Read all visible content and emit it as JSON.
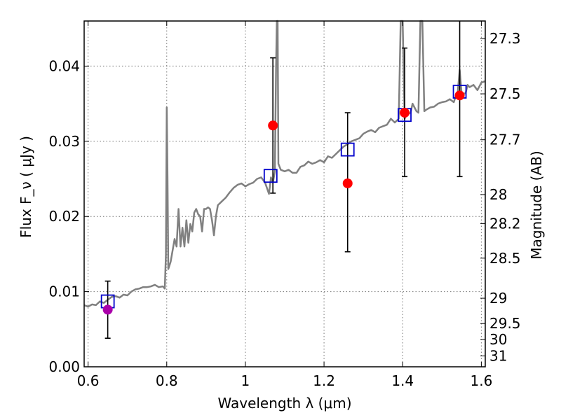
{
  "chart_data": {
    "type": "scatter",
    "xlabel": "Wavelength  λ (μm)",
    "ylabel": "Flux  F_ν  ( μJy )",
    "ylabel_right": "Magnitude (AB)",
    "xlim": [
      0.59,
      1.61
    ],
    "ylim": [
      0.0,
      0.046
    ],
    "grid": true,
    "x_ticks": [
      0.6,
      0.8,
      1.0,
      1.2,
      1.4,
      1.6
    ],
    "x_tick_labels": [
      "0.6",
      "0.8",
      "1",
      "1.2",
      "1.4",
      "1.6"
    ],
    "y_ticks": [
      0.0,
      0.01,
      0.02,
      0.03,
      0.04
    ],
    "y_tick_labels": [
      "0.00",
      "0.01",
      "0.02",
      "0.03",
      "0.04"
    ],
    "mag_ticks": [
      27.3,
      27.5,
      27.7,
      28,
      28.2,
      28.5,
      29,
      29.5,
      30,
      31
    ],
    "mag_tick_labels": [
      "27.3",
      "27.5",
      "27.7",
      "28",
      "28.2",
      "28.5",
      "29",
      "29.5",
      "30",
      "31"
    ],
    "colors": {
      "spectrum": "#808080",
      "model_boxes": "#0000cc",
      "observed": "#ff0000",
      "observed_first": "#aa00aa",
      "errorbars": "#000000",
      "grid": "#777777"
    },
    "spectrum": [
      [
        0.59,
        0.0082
      ],
      [
        0.6,
        0.008
      ],
      [
        0.61,
        0.0083
      ],
      [
        0.62,
        0.0082
      ],
      [
        0.63,
        0.0087
      ],
      [
        0.64,
        0.0085
      ],
      [
        0.65,
        0.0089
      ],
      [
        0.66,
        0.0093
      ],
      [
        0.67,
        0.0094
      ],
      [
        0.68,
        0.0092
      ],
      [
        0.69,
        0.0096
      ],
      [
        0.7,
        0.0095
      ],
      [
        0.71,
        0.01
      ],
      [
        0.72,
        0.0103
      ],
      [
        0.73,
        0.0104
      ],
      [
        0.74,
        0.0106
      ],
      [
        0.75,
        0.0106
      ],
      [
        0.76,
        0.0107
      ],
      [
        0.77,
        0.0109
      ],
      [
        0.78,
        0.0106
      ],
      [
        0.79,
        0.0107
      ],
      [
        0.795,
        0.0104
      ],
      [
        0.798,
        0.015
      ],
      [
        0.8,
        0.0345
      ],
      [
        0.802,
        0.025
      ],
      [
        0.804,
        0.013
      ],
      [
        0.81,
        0.014
      ],
      [
        0.815,
        0.0155
      ],
      [
        0.82,
        0.017
      ],
      [
        0.825,
        0.016
      ],
      [
        0.83,
        0.021
      ],
      [
        0.835,
        0.016
      ],
      [
        0.84,
        0.0185
      ],
      [
        0.845,
        0.016
      ],
      [
        0.85,
        0.0195
      ],
      [
        0.855,
        0.0165
      ],
      [
        0.86,
        0.019
      ],
      [
        0.865,
        0.018
      ],
      [
        0.87,
        0.0205
      ],
      [
        0.875,
        0.021
      ],
      [
        0.88,
        0.0203
      ],
      [
        0.885,
        0.02
      ],
      [
        0.89,
        0.018
      ],
      [
        0.895,
        0.021
      ],
      [
        0.9,
        0.021
      ],
      [
        0.905,
        0.0212
      ],
      [
        0.91,
        0.021
      ],
      [
        0.915,
        0.0195
      ],
      [
        0.92,
        0.0175
      ],
      [
        0.925,
        0.02
      ],
      [
        0.93,
        0.0215
      ],
      [
        0.94,
        0.022
      ],
      [
        0.95,
        0.0225
      ],
      [
        0.96,
        0.0232
      ],
      [
        0.97,
        0.0238
      ],
      [
        0.98,
        0.0242
      ],
      [
        0.99,
        0.0244
      ],
      [
        1.0,
        0.024
      ],
      [
        1.01,
        0.0243
      ],
      [
        1.02,
        0.0245
      ],
      [
        1.03,
        0.025
      ],
      [
        1.04,
        0.0252
      ],
      [
        1.05,
        0.0245
      ],
      [
        1.06,
        0.023
      ],
      [
        1.065,
        0.0252
      ],
      [
        1.07,
        0.0245
      ],
      [
        1.075,
        0.026
      ],
      [
        1.078,
        0.04
      ],
      [
        1.08,
        0.047
      ],
      [
        1.082,
        0.047
      ],
      [
        1.084,
        0.027
      ],
      [
        1.09,
        0.0262
      ],
      [
        1.1,
        0.026
      ],
      [
        1.11,
        0.0262
      ],
      [
        1.12,
        0.0258
      ],
      [
        1.13,
        0.0258
      ],
      [
        1.14,
        0.0266
      ],
      [
        1.15,
        0.0268
      ],
      [
        1.16,
        0.0273
      ],
      [
        1.17,
        0.027
      ],
      [
        1.18,
        0.0272
      ],
      [
        1.19,
        0.0275
      ],
      [
        1.2,
        0.0272
      ],
      [
        1.21,
        0.028
      ],
      [
        1.22,
        0.0278
      ],
      [
        1.23,
        0.0283
      ],
      [
        1.24,
        0.0288
      ],
      [
        1.25,
        0.0293
      ],
      [
        1.26,
        0.0296
      ],
      [
        1.27,
        0.03
      ],
      [
        1.28,
        0.0302
      ],
      [
        1.29,
        0.0304
      ],
      [
        1.3,
        0.031
      ],
      [
        1.31,
        0.0313
      ],
      [
        1.32,
        0.0315
      ],
      [
        1.33,
        0.0312
      ],
      [
        1.34,
        0.0318
      ],
      [
        1.35,
        0.032
      ],
      [
        1.36,
        0.0322
      ],
      [
        1.37,
        0.033
      ],
      [
        1.38,
        0.0325
      ],
      [
        1.39,
        0.033
      ],
      [
        1.395,
        0.047
      ],
      [
        1.4,
        0.047
      ],
      [
        1.405,
        0.033
      ],
      [
        1.41,
        0.0335
      ],
      [
        1.42,
        0.0338
      ],
      [
        1.425,
        0.035
      ],
      [
        1.43,
        0.0345
      ],
      [
        1.435,
        0.034
      ],
      [
        1.44,
        0.0338
      ],
      [
        1.445,
        0.047
      ],
      [
        1.45,
        0.047
      ],
      [
        1.455,
        0.034
      ],
      [
        1.46,
        0.0342
      ],
      [
        1.47,
        0.0345
      ],
      [
        1.48,
        0.0346
      ],
      [
        1.49,
        0.035
      ],
      [
        1.5,
        0.0352
      ],
      [
        1.51,
        0.0353
      ],
      [
        1.52,
        0.0356
      ],
      [
        1.53,
        0.0352
      ],
      [
        1.535,
        0.036
      ],
      [
        1.54,
        0.0365
      ],
      [
        1.545,
        0.0395
      ],
      [
        1.55,
        0.0362
      ],
      [
        1.56,
        0.0364
      ],
      [
        1.565,
        0.0375
      ],
      [
        1.57,
        0.0372
      ],
      [
        1.58,
        0.0375
      ],
      [
        1.59,
        0.0368
      ],
      [
        1.6,
        0.0378
      ],
      [
        1.61,
        0.038
      ]
    ],
    "model_points": [
      {
        "x": 0.65,
        "y": 0.0087
      },
      {
        "x": 1.064,
        "y": 0.0254
      },
      {
        "x": 1.26,
        "y": 0.0289
      },
      {
        "x": 1.405,
        "y": 0.0335
      },
      {
        "x": 1.545,
        "y": 0.0366
      }
    ],
    "observed_points": [
      {
        "x": 0.65,
        "y": 0.0076,
        "err_low": 0.0038,
        "err_high": 0.0114
      },
      {
        "x": 1.07,
        "y": 0.0321,
        "err_low": 0.0231,
        "err_high": 0.0411
      },
      {
        "x": 1.26,
        "y": 0.0244,
        "err_low": 0.0153,
        "err_high": 0.0338
      },
      {
        "x": 1.405,
        "y": 0.0338,
        "err_low": 0.0253,
        "err_high": 0.0424
      },
      {
        "x": 1.545,
        "y": 0.0361,
        "err_low": 0.0253,
        "err_high": 0.047
      }
    ]
  }
}
